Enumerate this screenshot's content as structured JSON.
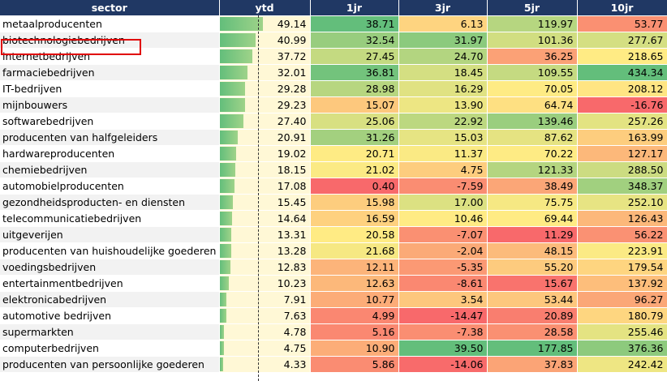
{
  "columns": {
    "sector": "sector",
    "ytd": "ytd",
    "c1": "1jr",
    "c3": "3jr",
    "c5": "5jr",
    "c10": "10jr"
  },
  "highlighted_row": "biotechnologiebedrijven",
  "chart_data": {
    "type": "table",
    "columns": [
      "sector",
      "ytd",
      "1jr",
      "3jr",
      "5jr",
      "10jr"
    ],
    "rows": [
      {
        "sector": "metaalproducenten",
        "ytd": "49.14",
        "1jr": "38.71",
        "3jr": "6.13",
        "5jr": "119.97",
        "10jr": "53.77"
      },
      {
        "sector": "biotechnologiebedrijven",
        "ytd": "40.99",
        "1jr": "32.54",
        "3jr": "31.97",
        "5jr": "101.36",
        "10jr": "277.67"
      },
      {
        "sector": "internetbedrijven",
        "ytd": "37.72",
        "1jr": "27.45",
        "3jr": "24.70",
        "5jr": "36.25",
        "10jr": "218.65"
      },
      {
        "sector": "farmaciebedrijven",
        "ytd": "32.01",
        "1jr": "36.81",
        "3jr": "18.45",
        "5jr": "109.55",
        "10jr": "434.34"
      },
      {
        "sector": "IT-bedrijven",
        "ytd": "29.28",
        "1jr": "28.98",
        "3jr": "16.29",
        "5jr": "70.05",
        "10jr": "208.12"
      },
      {
        "sector": "mijnbouwers",
        "ytd": "29.23",
        "1jr": "15.07",
        "3jr": "13.90",
        "5jr": "64.74",
        "10jr": "-16.76"
      },
      {
        "sector": "softwarebedrijven",
        "ytd": "27.40",
        "1jr": "25.06",
        "3jr": "22.92",
        "5jr": "139.46",
        "10jr": "257.26"
      },
      {
        "sector": "producenten van halfgeleiders",
        "ytd": "20.91",
        "1jr": "31.26",
        "3jr": "15.03",
        "5jr": "87.62",
        "10jr": "163.99"
      },
      {
        "sector": "hardwareproducenten",
        "ytd": "19.02",
        "1jr": "20.71",
        "3jr": "11.37",
        "5jr": "70.22",
        "10jr": "127.17"
      },
      {
        "sector": "chemiebedrijven",
        "ytd": "18.15",
        "1jr": "21.02",
        "3jr": "4.75",
        "5jr": "121.33",
        "10jr": "288.50"
      },
      {
        "sector": "automobielproducenten",
        "ytd": "17.08",
        "1jr": "0.40",
        "3jr": "-7.59",
        "5jr": "38.49",
        "10jr": "348.37"
      },
      {
        "sector": "gezondheidsproducten- en diensten",
        "ytd": "15.45",
        "1jr": "15.98",
        "3jr": "17.00",
        "5jr": "75.75",
        "10jr": "252.10"
      },
      {
        "sector": "telecommunicatiebedrijven",
        "ytd": "14.64",
        "1jr": "16.59",
        "3jr": "10.46",
        "5jr": "69.44",
        "10jr": "126.43"
      },
      {
        "sector": "uitgeverijen",
        "ytd": "13.31",
        "1jr": "20.58",
        "3jr": "-7.07",
        "5jr": "11.29",
        "10jr": "56.22"
      },
      {
        "sector": "producenten van huishoudelijke goederen",
        "ytd": "13.28",
        "1jr": "21.68",
        "3jr": "-2.04",
        "5jr": "48.15",
        "10jr": "223.91"
      },
      {
        "sector": "voedingsbedrijven",
        "ytd": "12.83",
        "1jr": "12.11",
        "3jr": "-5.35",
        "5jr": "55.20",
        "10jr": "179.54"
      },
      {
        "sector": "entertainmentbedrijven",
        "ytd": "10.23",
        "1jr": "12.63",
        "3jr": "-8.61",
        "5jr": "15.67",
        "10jr": "137.92"
      },
      {
        "sector": "elektronicabedrijven",
        "ytd": "7.91",
        "1jr": "10.77",
        "3jr": "3.54",
        "5jr": "53.44",
        "10jr": "96.27"
      },
      {
        "sector": "automotive bedrijven",
        "ytd": "7.63",
        "1jr": "4.99",
        "3jr": "-14.47",
        "5jr": "20.89",
        "10jr": "180.79"
      },
      {
        "sector": "supermarkten",
        "ytd": "4.78",
        "1jr": "5.16",
        "3jr": "-7.38",
        "5jr": "28.58",
        "10jr": "255.46"
      },
      {
        "sector": "computerbedrijven",
        "ytd": "4.75",
        "1jr": "10.90",
        "3jr": "39.50",
        "5jr": "177.85",
        "10jr": "376.36"
      },
      {
        "sector": "producenten van persoonlijke goederen",
        "ytd": "4.33",
        "1jr": "5.86",
        "3jr": "-14.06",
        "5jr": "37.83",
        "10jr": "242.42"
      }
    ],
    "ytd_bar_max": 49.14
  }
}
